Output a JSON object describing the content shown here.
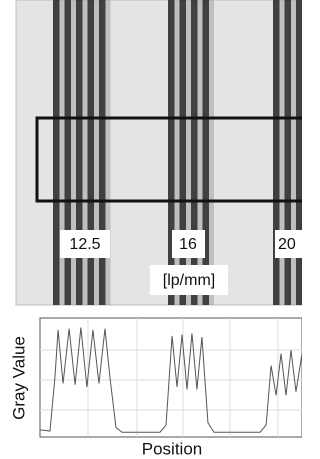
{
  "image": {
    "labels": [
      "12.5",
      "16",
      "20"
    ],
    "unit": "[lp/mm]"
  },
  "chart_data": {
    "type": "line",
    "x_label": "Position",
    "y_label": "Gray Value",
    "x": [
      0,
      3.8,
      5.7,
      6.9,
      8.8,
      11.1,
      13.4,
      15.6,
      17.9,
      20.2,
      22.5,
      24.8,
      26.7,
      29.0,
      31.3,
      45.8,
      48.1,
      50.4,
      52.3,
      54.2,
      56.1,
      58.0,
      59.9,
      61.8,
      64.1,
      66.4,
      84.0,
      86.3,
      88.2,
      90.1,
      92.0,
      93.9,
      95.8,
      97.7,
      100
    ],
    "values": [
      6,
      5,
      50,
      90,
      45,
      91,
      44,
      92,
      42,
      90,
      45,
      91,
      50,
      8,
      4,
      4,
      10,
      85,
      42,
      86,
      40,
      87,
      40,
      84,
      12,
      4,
      4,
      10,
      60,
      35,
      70,
      35,
      73,
      38,
      70
    ],
    "xlim": [
      0,
      100
    ],
    "ylim": [
      0,
      100
    ],
    "color": "#555555"
  }
}
